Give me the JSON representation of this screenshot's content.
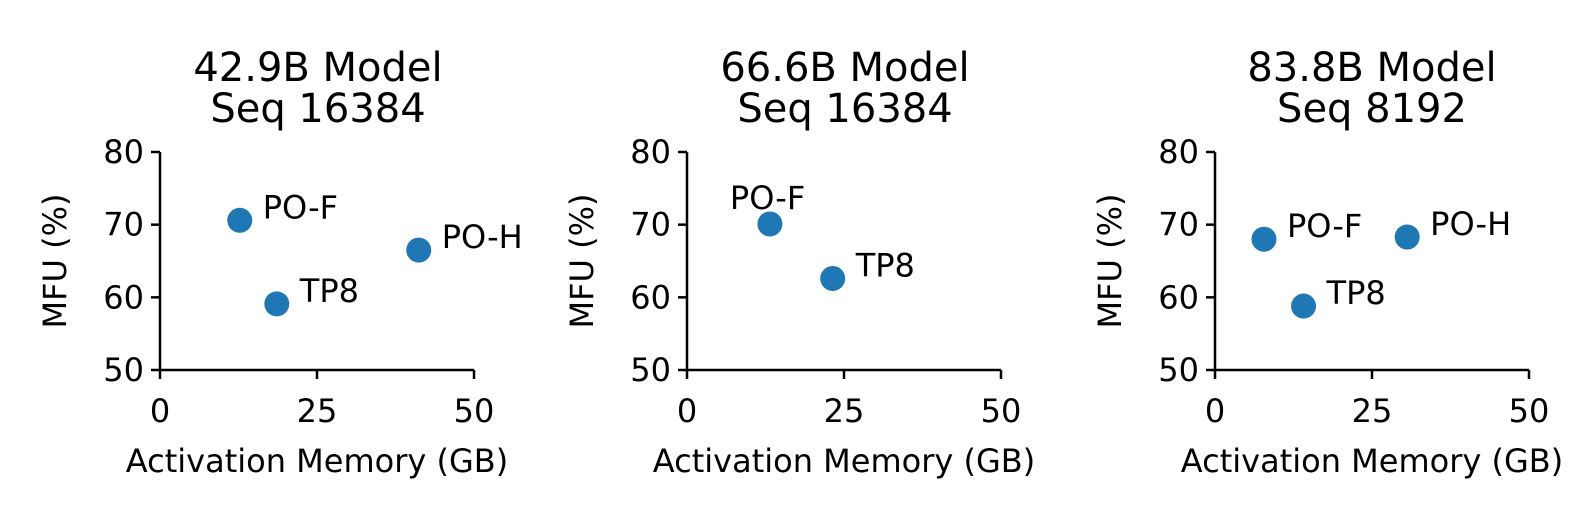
{
  "colors": {
    "marker": "#1f77b4",
    "axis": "#000000"
  },
  "chart_data": [
    {
      "type": "scatter",
      "title": [
        "42.9B Model",
        "Seq 16384"
      ],
      "xlabel": "Activation Memory (GB)",
      "ylabel": "MFU (%)",
      "xlim": [
        0,
        50
      ],
      "ylim": [
        50,
        80
      ],
      "xticks": [
        0,
        25,
        50
      ],
      "yticks": [
        50,
        60,
        70,
        80
      ],
      "grid": false,
      "points": [
        {
          "label": "PO-F",
          "x": 12.7,
          "y": 70.6
        },
        {
          "label": "TP8",
          "x": 18.6,
          "y": 59.1
        },
        {
          "label": "PO-H",
          "x": 41.2,
          "y": 66.5
        }
      ]
    },
    {
      "type": "scatter",
      "title": [
        "66.6B Model",
        "Seq 16384"
      ],
      "xlabel": "Activation Memory (GB)",
      "ylabel": "MFU (%)",
      "xlim": [
        0,
        50
      ],
      "ylim": [
        50,
        80
      ],
      "xticks": [
        0,
        25,
        50
      ],
      "yticks": [
        50,
        60,
        70,
        80
      ],
      "grid": false,
      "points": [
        {
          "label": "PO-F",
          "x": 13.2,
          "y": 70.1
        },
        {
          "label": "TP8",
          "x": 23.2,
          "y": 62.6
        }
      ]
    },
    {
      "type": "scatter",
      "title": [
        "83.8B Model",
        "Seq 8192"
      ],
      "xlabel": "Activation Memory (GB)",
      "ylabel": "MFU (%)",
      "xlim": [
        0,
        50
      ],
      "ylim": [
        50,
        80
      ],
      "xticks": [
        0,
        25,
        50
      ],
      "yticks": [
        50,
        60,
        70,
        80
      ],
      "grid": false,
      "points": [
        {
          "label": "PO-F",
          "x": 7.8,
          "y": 68.0
        },
        {
          "label": "TP8",
          "x": 14.1,
          "y": 58.8
        },
        {
          "label": "PO-H",
          "x": 30.6,
          "y": 68.3
        }
      ]
    }
  ]
}
